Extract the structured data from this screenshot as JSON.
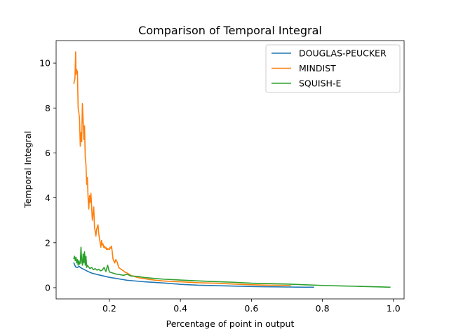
{
  "chart_data": {
    "type": "line",
    "title": "Comparison of Temporal Integral",
    "xlabel": "Percentage of point in output",
    "ylabel": "Temporal Integral",
    "xlim": [
      0.05,
      1.03
    ],
    "ylim": [
      -0.5,
      11.0
    ],
    "xticks": [
      0.2,
      0.4,
      0.6,
      0.8,
      1.0
    ],
    "xtick_labels": [
      "0.2",
      "0.4",
      "0.6",
      "0.8",
      "1.0"
    ],
    "yticks": [
      0,
      2,
      4,
      6,
      8,
      10
    ],
    "ytick_labels": [
      "0",
      "2",
      "4",
      "6",
      "8",
      "10"
    ],
    "grid": false,
    "legend_position": "top-right",
    "series": [
      {
        "name": "DOUGLAS-PEUCKER",
        "color": "#1f77b4",
        "x": [
          0.1,
          0.105,
          0.11,
          0.115,
          0.12,
          0.13,
          0.14,
          0.15,
          0.17,
          0.2,
          0.25,
          0.3,
          0.35,
          0.4,
          0.45,
          0.5,
          0.55,
          0.6,
          0.65,
          0.7,
          0.75,
          0.775
        ],
        "y": [
          1.1,
          0.92,
          0.9,
          0.95,
          0.88,
          0.8,
          0.72,
          0.65,
          0.57,
          0.46,
          0.33,
          0.26,
          0.21,
          0.15,
          0.11,
          0.09,
          0.07,
          0.05,
          0.04,
          0.03,
          0.02,
          0.02
        ]
      },
      {
        "name": "MINDIST",
        "color": "#ff7f0e",
        "x": [
          0.1,
          0.103,
          0.105,
          0.106,
          0.108,
          0.11,
          0.112,
          0.114,
          0.116,
          0.118,
          0.12,
          0.122,
          0.124,
          0.126,
          0.128,
          0.13,
          0.132,
          0.134,
          0.136,
          0.138,
          0.14,
          0.142,
          0.144,
          0.146,
          0.148,
          0.15,
          0.152,
          0.154,
          0.156,
          0.158,
          0.16,
          0.162,
          0.164,
          0.166,
          0.168,
          0.17,
          0.172,
          0.174,
          0.176,
          0.178,
          0.18,
          0.182,
          0.184,
          0.186,
          0.188,
          0.19,
          0.192,
          0.194,
          0.196,
          0.198,
          0.2,
          0.202,
          0.204,
          0.206,
          0.208,
          0.21,
          0.212,
          0.215,
          0.218,
          0.222,
          0.226,
          0.23,
          0.235,
          0.24,
          0.243,
          0.246,
          0.25,
          0.255,
          0.26,
          0.265,
          0.27,
          0.28,
          0.29,
          0.3,
          0.31,
          0.32,
          0.33,
          0.34,
          0.35,
          0.37,
          0.4,
          0.45,
          0.5,
          0.55,
          0.6,
          0.65,
          0.7,
          0.71
        ],
        "y": [
          9.1,
          9.3,
          10.5,
          9.5,
          9.7,
          9.6,
          8.0,
          7.8,
          7.5,
          6.3,
          6.9,
          6.5,
          8.2,
          7.5,
          6.6,
          7.2,
          5.8,
          5.5,
          4.6,
          4.9,
          4.0,
          3.5,
          4.1,
          3.8,
          4.2,
          3.6,
          3.0,
          3.3,
          3.6,
          2.7,
          2.5,
          2.3,
          2.6,
          2.7,
          2.8,
          2.4,
          2.2,
          2.0,
          1.8,
          2.1,
          1.9,
          1.95,
          1.8,
          1.85,
          1.75,
          1.8,
          1.7,
          1.75,
          1.7,
          1.72,
          1.7,
          1.8,
          1.75,
          1.85,
          1.6,
          1.3,
          1.2,
          1.1,
          1.25,
          1.15,
          0.9,
          0.85,
          0.8,
          0.75,
          0.7,
          0.68,
          0.65,
          0.6,
          0.55,
          0.52,
          0.5,
          0.45,
          0.42,
          0.4,
          0.37,
          0.35,
          0.33,
          0.32,
          0.3,
          0.28,
          0.26,
          0.22,
          0.2,
          0.16,
          0.13,
          0.11,
          0.1,
          0.09
        ]
      },
      {
        "name": "SQUISH-E",
        "color": "#2ca02c",
        "x": [
          0.1,
          0.102,
          0.104,
          0.106,
          0.108,
          0.11,
          0.112,
          0.114,
          0.116,
          0.118,
          0.12,
          0.122,
          0.124,
          0.126,
          0.128,
          0.13,
          0.132,
          0.134,
          0.136,
          0.138,
          0.14,
          0.145,
          0.15,
          0.155,
          0.16,
          0.165,
          0.17,
          0.175,
          0.18,
          0.185,
          0.19,
          0.195,
          0.2,
          0.21,
          0.22,
          0.23,
          0.24,
          0.25,
          0.26,
          0.28,
          0.3,
          0.32,
          0.35,
          0.4,
          0.45,
          0.5,
          0.55,
          0.6,
          0.65,
          0.7,
          0.75,
          0.8,
          0.85,
          0.9,
          0.95,
          0.99
        ],
        "y": [
          1.3,
          1.4,
          1.2,
          1.35,
          1.1,
          1.25,
          1.0,
          1.2,
          1.05,
          1.1,
          1.8,
          1.2,
          1.0,
          1.5,
          1.1,
          1.6,
          1.0,
          1.4,
          0.9,
          1.0,
          0.95,
          0.85,
          0.9,
          0.8,
          0.85,
          0.78,
          0.82,
          0.75,
          0.78,
          0.9,
          0.72,
          1.0,
          0.7,
          0.65,
          0.6,
          0.58,
          0.55,
          0.6,
          0.52,
          0.5,
          0.45,
          0.42,
          0.38,
          0.34,
          0.3,
          0.27,
          0.24,
          0.2,
          0.18,
          0.16,
          0.13,
          0.1,
          0.08,
          0.06,
          0.04,
          0.02
        ]
      }
    ]
  }
}
